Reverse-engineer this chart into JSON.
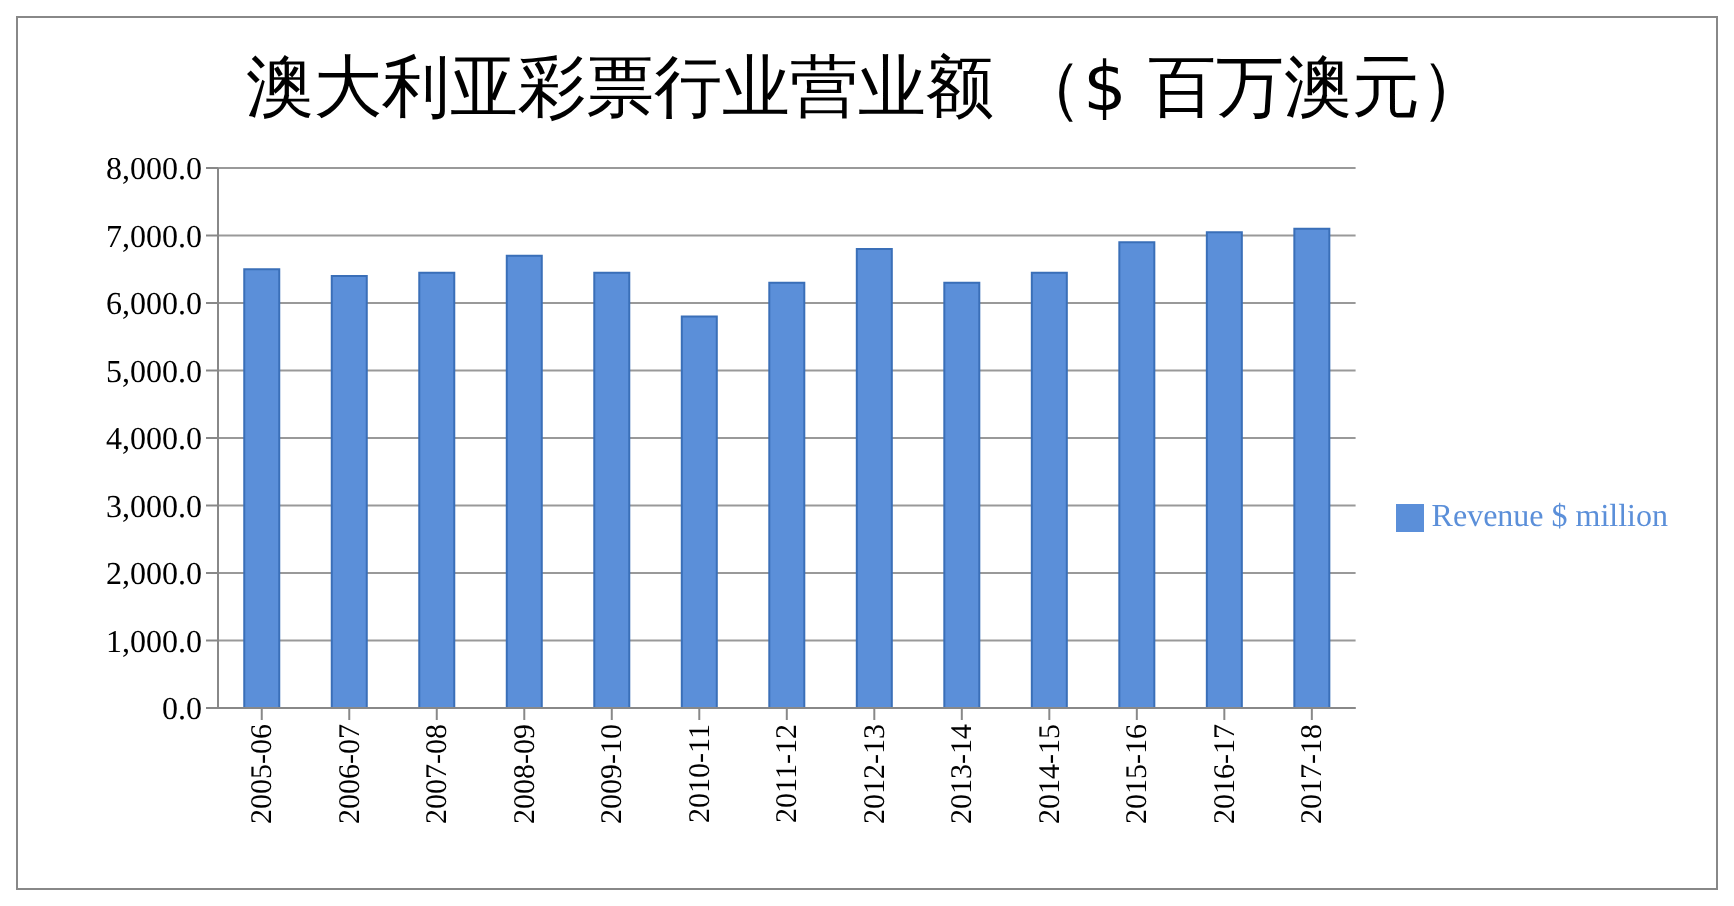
{
  "chart_data": {
    "type": "bar",
    "title": "澳大利亚彩票行业营业额 （$ 百万澳元）",
    "categories": [
      "2005-06",
      "2006-07",
      "2007-08",
      "2008-09",
      "2009-10",
      "2010-11",
      "2011-12",
      "2012-13",
      "2013-14",
      "2014-15",
      "2015-16",
      "2016-17",
      "2017-18"
    ],
    "series": [
      {
        "name": "Revenue $ million",
        "color": "#5b8fd9",
        "values": [
          6500,
          6400,
          6450,
          6700,
          6450,
          5800,
          6300,
          6800,
          6300,
          6450,
          6900,
          7050,
          7100
        ]
      }
    ],
    "ylim": [
      0,
      8000
    ],
    "yticks": [
      {
        "value": 0,
        "label": "0.0"
      },
      {
        "value": 1000,
        "label": "1,000.0"
      },
      {
        "value": 2000,
        "label": "2,000.0"
      },
      {
        "value": 3000,
        "label": "3,000.0"
      },
      {
        "value": 4000,
        "label": "4,000.0"
      },
      {
        "value": 5000,
        "label": "5,000.0"
      },
      {
        "value": 6000,
        "label": "6,000.0"
      },
      {
        "value": 7000,
        "label": "7,000.0"
      },
      {
        "value": 8000,
        "label": "8,000.0"
      }
    ],
    "grid": "y",
    "legend": "right"
  }
}
